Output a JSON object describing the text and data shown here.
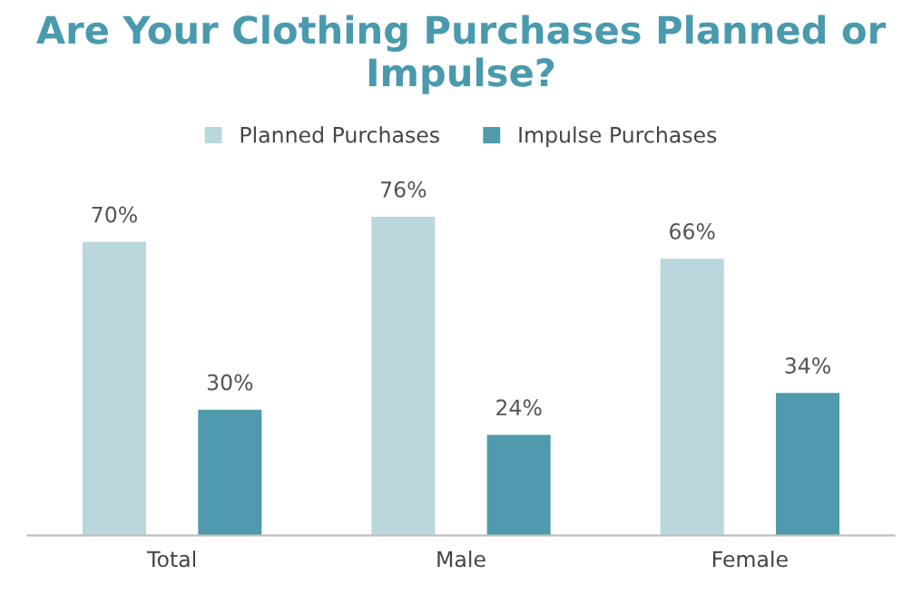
{
  "chart_data": {
    "type": "bar",
    "title": "Are Your Clothing Purchases Planned or Impulse?",
    "categories": [
      "Total",
      "Male",
      "Female"
    ],
    "series": [
      {
        "name": "Planned Purchases",
        "color": "#b9d7dc",
        "values": [
          70,
          76,
          66
        ],
        "value_labels": [
          "70%",
          "76%",
          "66%"
        ]
      },
      {
        "name": "Impulse Purchases",
        "color": "#4f9aac",
        "values": [
          30,
          24,
          34
        ],
        "value_labels": [
          "30%",
          "24%",
          "34%"
        ]
      }
    ],
    "legend": "top",
    "grid": false,
    "tick_labels": "x"
  }
}
